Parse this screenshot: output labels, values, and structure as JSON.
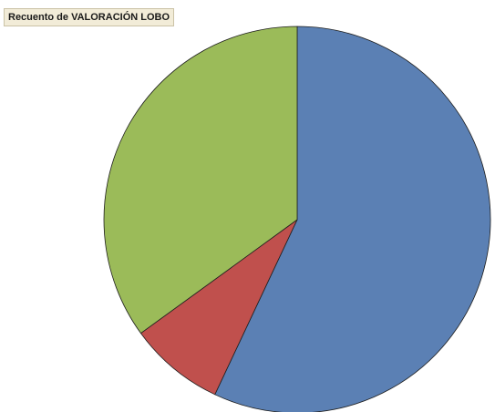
{
  "chart_data": {
    "type": "pie",
    "title": "Recuento de VALORACIÓN LOBO",
    "categories": [
      "",
      "",
      ""
    ],
    "values": [
      57,
      8,
      35
    ],
    "colors": [
      "#5b80b4",
      "#c0504d",
      "#9bbb59"
    ],
    "start_angle_deg": 0,
    "direction": "clockwise",
    "legend": "none"
  }
}
